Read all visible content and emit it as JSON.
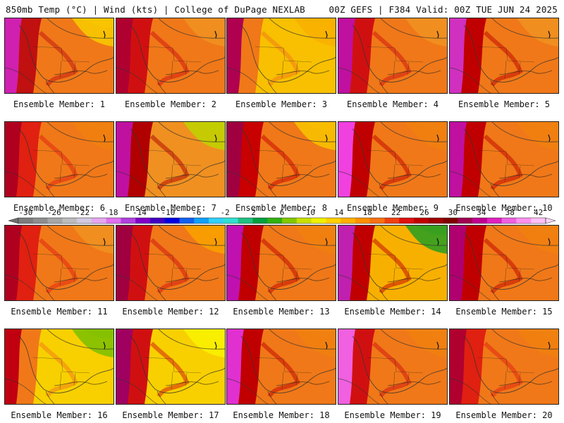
{
  "header": {
    "left_title": "850mb Temp (°C) | Wind (kts) | College of DuPage NEXLAB",
    "right_title": "00Z GEFS | F384 Valid: 00Z TUE JUN 24 2025"
  },
  "legend": {
    "tick_labels": [
      "-30",
      "-26",
      "-22",
      "-18",
      "-14",
      "-10",
      "-6",
      "-2",
      "2",
      "6",
      "10",
      "14",
      "18",
      "22",
      "26",
      "30",
      "34",
      "38",
      "42"
    ],
    "colors": [
      "#7d7d7d",
      "#8e8e8e",
      "#a6a6a6",
      "#bcbcbc",
      "#d2c8e0",
      "#e6a6f0",
      "#e070f0",
      "#b040e0",
      "#8000c8",
      "#4000c0",
      "#0000e0",
      "#1060f0",
      "#10a0f8",
      "#30d0f8",
      "#30e0d0",
      "#20c080",
      "#00a040",
      "#30b010",
      "#80c800",
      "#c8e000",
      "#f0f000",
      "#ffd000",
      "#ffb000",
      "#ff9000",
      "#f87010",
      "#f04010",
      "#e01010",
      "#c00000",
      "#a00000",
      "#800000",
      "#a00050",
      "#c00090",
      "#e020c0",
      "#f060e0",
      "#ff90f0",
      "#ffc0f8"
    ]
  },
  "members": [
    {
      "label": "Ensemble Member: 1"
    },
    {
      "label": "Ensemble Member: 2"
    },
    {
      "label": "Ensemble Member: 3"
    },
    {
      "label": "Ensemble Member: 4"
    },
    {
      "label": "Ensemble Member: 5"
    },
    {
      "label": "Ensemble Member: 6"
    },
    {
      "label": "Ensemble Member: 7"
    },
    {
      "label": "Ensemble Member: 8"
    },
    {
      "label": "Ensemble Member: 9"
    },
    {
      "label": "Ensemble Member: 10"
    },
    {
      "label": "Ensemble Member: 11"
    },
    {
      "label": "Ensemble Member: 12"
    },
    {
      "label": "Ensemble Member: 13"
    },
    {
      "label": "Ensemble Member: 14"
    },
    {
      "label": "Ensemble Member: 15"
    },
    {
      "label": "Ensemble Member: 16"
    },
    {
      "label": "Ensemble Member: 17"
    },
    {
      "label": "Ensemble Member: 18"
    },
    {
      "label": "Ensemble Member: 19"
    },
    {
      "label": "Ensemble Member: 20"
    }
  ]
}
